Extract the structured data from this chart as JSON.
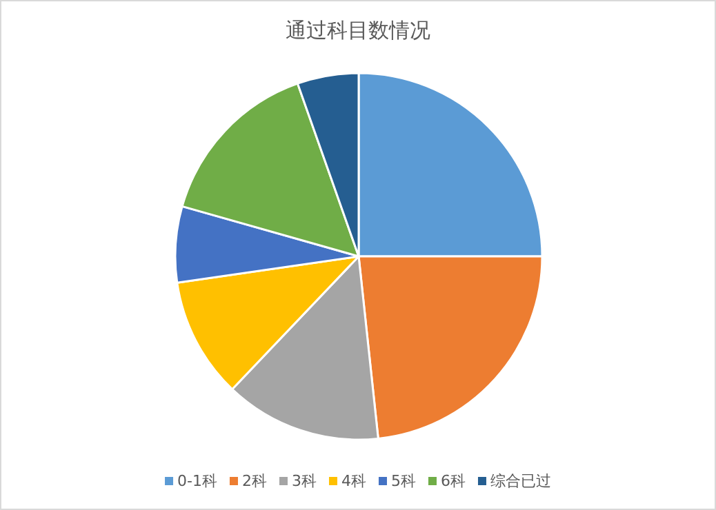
{
  "chart_data": {
    "type": "pie",
    "title": "通过科目数情况",
    "categories": [
      "0-1科",
      "2科",
      "3科",
      "4科",
      "5科",
      "6科",
      "综合已过"
    ],
    "values": [
      25,
      23.3,
      13.8,
      10.6,
      6.7,
      15.2,
      5.4
    ],
    "colors": [
      "#5b9bd5",
      "#ed7d31",
      "#a5a5a5",
      "#ffc000",
      "#4472c4",
      "#70ad47",
      "#255e91"
    ],
    "legend": "bottom"
  }
}
